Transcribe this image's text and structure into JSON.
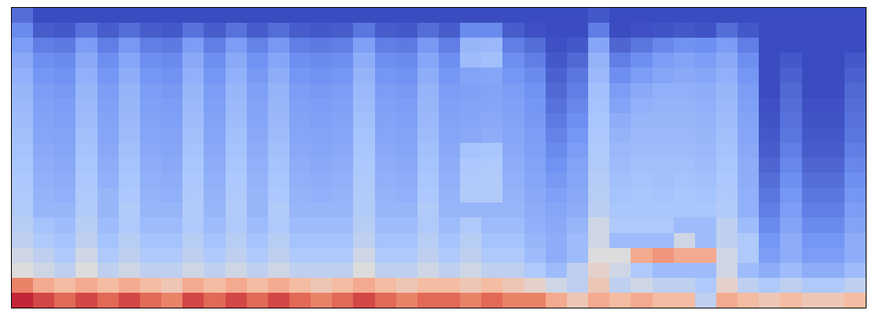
{
  "chart_data": {
    "type": "heatmap",
    "tick_labels": false,
    "grid": false,
    "xlim": [
      -0.5,
      39.5
    ],
    "ylim": [
      -0.5,
      19.5
    ],
    "color_range": [
      0,
      10
    ],
    "colors": [
      "#3b4cc0",
      "#6f92f3",
      "#aac7fd",
      "#dddcdc",
      "#f7b89c",
      "#e7745b",
      "#b40426"
    ],
    "cells": [
      [
        9.5,
        9,
        8.5,
        9,
        8.5,
        9,
        8.5,
        8,
        9,
        8.5,
        9,
        8.5,
        9,
        8.5,
        8,
        8.5,
        9,
        8.5,
        8,
        8.5,
        8.5,
        8,
        8.5,
        8,
        8,
        7,
        6,
        7,
        6.5,
        7,
        6.5,
        6.5,
        4,
        7,
        6.5,
        6,
        6.5,
        6,
        6,
        6.5
      ],
      [
        8,
        7,
        6.5,
        7,
        6.5,
        7,
        6.5,
        6,
        7,
        6.5,
        7,
        6.5,
        7,
        6.5,
        6,
        6.5,
        7,
        6.5,
        6,
        6.5,
        6.5,
        6,
        6.5,
        6,
        5.5,
        4.5,
        4,
        6,
        4,
        4.5,
        4,
        4,
        3.5,
        5.5,
        4,
        3.5,
        4,
        3.5,
        3.5,
        4
      ],
      [
        5,
        4.5,
        4,
        5,
        4,
        4.5,
        4,
        4,
        4.5,
        4,
        4.5,
        4,
        4.5,
        4,
        4,
        4,
        5,
        4,
        4,
        4.5,
        4,
        4.5,
        4,
        4,
        3.5,
        3,
        4,
        5.5,
        4.5,
        3.5,
        3,
        3,
        3,
        4.5,
        3,
        2.5,
        3,
        2.5,
        2.5,
        3
      ],
      [
        4.5,
        4,
        3.5,
        4.5,
        3.5,
        4,
        3.5,
        3.5,
        4,
        3.5,
        4,
        3.5,
        4,
        3.5,
        3.5,
        3.5,
        4.5,
        3.5,
        3.5,
        4,
        3.5,
        4,
        3.5,
        3.5,
        3,
        2.5,
        3,
        5,
        5,
        7,
        7.5,
        7,
        7,
        4.5,
        3.5,
        2,
        2.5,
        2,
        2,
        2.5
      ],
      [
        4,
        3.5,
        3.2,
        4,
        3.2,
        3.8,
        3.2,
        3.2,
        3.8,
        3.2,
        3.8,
        3.2,
        3.8,
        3.2,
        3.2,
        3.2,
        4,
        3.2,
        3.2,
        3.8,
        3.2,
        3.8,
        3.2,
        3.2,
        2.8,
        2.5,
        3,
        4.5,
        3,
        3,
        3,
        4.5,
        3,
        4,
        3.5,
        1.8,
        2.5,
        1.8,
        1.8,
        2.5
      ],
      [
        3.8,
        3.2,
        3,
        3.8,
        3,
        3.5,
        3,
        3,
        3.5,
        3,
        3.5,
        3,
        3.5,
        3,
        3,
        3,
        3.8,
        3,
        3,
        3.5,
        3,
        3.5,
        3,
        3,
        2.6,
        2.4,
        2.8,
        4.5,
        3.5,
        3.5,
        3.5,
        3,
        3,
        4,
        3,
        1.5,
        2.2,
        1.5,
        1.5,
        2.2
      ],
      [
        3.6,
        2.8,
        2.8,
        3.6,
        2.8,
        3.6,
        2.8,
        2.8,
        3.6,
        2.8,
        3.6,
        2.8,
        3.6,
        2.8,
        2.8,
        2.8,
        3.6,
        2.8,
        2.8,
        3.6,
        2.8,
        2.8,
        2.8,
        2.8,
        2.5,
        2.3,
        2.5,
        3.9,
        3.3,
        3.3,
        3.3,
        3.3,
        3.3,
        3.6,
        2.6,
        1.2,
        2,
        1.2,
        1.2,
        2
      ],
      [
        3.5,
        2.7,
        2.6,
        3.5,
        2.8,
        3.4,
        2.7,
        2.6,
        3.5,
        2.7,
        3.5,
        2.8,
        3.4,
        2.7,
        2.6,
        2.7,
        3.6,
        2.7,
        2.6,
        3.4,
        2.7,
        3.6,
        3.6,
        2.7,
        2.4,
        2.1,
        2.4,
        3.8,
        3.2,
        3.3,
        3.2,
        3.3,
        3.2,
        3.5,
        2.6,
        1,
        1.8,
        1,
        1,
        1.8
      ],
      [
        3.4,
        2.6,
        2.5,
        3.4,
        2.6,
        3.3,
        2.6,
        2.5,
        3.4,
        2.6,
        3.4,
        2.7,
        3.3,
        2.6,
        2.5,
        2.6,
        3.5,
        2.6,
        2.5,
        3.3,
        2.6,
        3.5,
        3.6,
        2.6,
        2.3,
        1.9,
        2.3,
        3.7,
        3.1,
        3.2,
        3.1,
        3.2,
        3.1,
        3.4,
        2.5,
        0.8,
        1.6,
        0.8,
        0.8,
        1.6
      ],
      [
        3.3,
        2.5,
        2.4,
        3.3,
        2.5,
        3.2,
        2.5,
        2.4,
        3.3,
        2.5,
        3.3,
        2.6,
        3.2,
        2.5,
        2.4,
        2.5,
        3.4,
        2.5,
        2.4,
        3.2,
        2.5,
        3.4,
        3.5,
        2.5,
        2.2,
        1.7,
        2.2,
        3.6,
        3,
        3.1,
        3.1,
        3.1,
        3,
        3.3,
        2.5,
        0.6,
        1.4,
        0.6,
        0.6,
        1.4
      ],
      [
        3.2,
        2.4,
        2.3,
        3.2,
        2.4,
        3.1,
        2.4,
        2.3,
        3.2,
        2.4,
        3.2,
        2.5,
        3.1,
        2.4,
        2.3,
        2.4,
        3.3,
        2.4,
        2.3,
        3.1,
        2.4,
        3.2,
        3.3,
        2.4,
        2.1,
        1.5,
        2,
        3.5,
        2.9,
        3,
        3,
        3,
        2.9,
        3.2,
        2.4,
        0.4,
        1.2,
        0.4,
        0.4,
        1.2
      ],
      [
        3.1,
        2.3,
        2.2,
        3.1,
        2.3,
        3,
        2.3,
        2.2,
        3.1,
        2.3,
        3.1,
        2.4,
        3,
        2.3,
        2.2,
        2.3,
        3.2,
        2.3,
        2.2,
        3,
        2.3,
        2.4,
        2.5,
        2.3,
        2,
        1.3,
        1.8,
        3.4,
        2.7,
        2.9,
        2.9,
        2.9,
        2.8,
        3.1,
        2.3,
        0.3,
        1,
        0.3,
        0.3,
        1
      ],
      [
        3,
        2.2,
        2.1,
        3,
        2.2,
        2.9,
        2.2,
        2.1,
        3,
        2.2,
        3,
        2.3,
        2.9,
        2.2,
        2.1,
        2.2,
        3.1,
        2.2,
        2.1,
        2.9,
        2.2,
        2.3,
        2.4,
        2.2,
        1.9,
        1.1,
        1.6,
        3.3,
        2.5,
        2.8,
        2.8,
        2.8,
        2.7,
        3,
        2.2,
        0.2,
        0.9,
        0.2,
        0.2,
        0.9
      ],
      [
        2.9,
        2.1,
        2,
        2.9,
        2.1,
        2.8,
        2.1,
        2,
        2.9,
        2.1,
        2.9,
        2.2,
        2.8,
        2.1,
        2,
        2.1,
        3,
        2.1,
        2,
        2.8,
        2.1,
        2.2,
        2.3,
        2.1,
        1.8,
        0.9,
        1.4,
        3.2,
        2.2,
        2.6,
        2.7,
        2.7,
        2.6,
        2.9,
        2.1,
        0.1,
        0.8,
        0.1,
        0.1,
        0.8
      ],
      [
        2.8,
        2,
        1.9,
        2.8,
        2,
        2.7,
        2,
        1.9,
        2.8,
        2,
        2.8,
        2.1,
        2.7,
        2,
        1.9,
        2,
        2.9,
        2,
        1.9,
        2.7,
        2,
        2.1,
        2.2,
        2,
        1.7,
        0.7,
        1.2,
        3.1,
        2,
        2.4,
        2.6,
        2.6,
        2.5,
        2.8,
        2,
        0,
        0.7,
        0,
        0,
        0.7
      ],
      [
        2.6,
        1.8,
        1.7,
        2.6,
        1.8,
        2.5,
        1.8,
        1.7,
        2.6,
        1.8,
        2.6,
        1.9,
        2.5,
        1.8,
        1.7,
        1.8,
        2.7,
        1.8,
        1.7,
        2.5,
        1.8,
        2.2,
        2.3,
        1.8,
        1.5,
        0.5,
        1,
        2.9,
        1.6,
        2,
        2.3,
        2.4,
        2.3,
        2.6,
        1.8,
        0,
        0.5,
        0,
        0,
        0.5
      ],
      [
        2.4,
        1.6,
        1.5,
        2.4,
        1.6,
        2.3,
        1.6,
        1.5,
        2.4,
        1.6,
        2.4,
        1.7,
        2.3,
        1.6,
        1.5,
        1.6,
        2.5,
        1.6,
        1.5,
        2.3,
        1.6,
        3,
        3.1,
        1.6,
        1.2,
        0.3,
        0.7,
        2.7,
        1.2,
        1.6,
        2,
        2.2,
        2,
        2.4,
        1.6,
        0,
        0.3,
        0,
        0,
        0.3
      ],
      [
        2,
        1.2,
        1.1,
        2,
        1.2,
        1.9,
        1.2,
        1.1,
        2,
        1.2,
        2,
        1.3,
        1.9,
        1.2,
        1.1,
        1.2,
        2.1,
        1.2,
        1.1,
        1.9,
        1.2,
        2.8,
        2.9,
        1.2,
        0.8,
        0.1,
        0.3,
        2.3,
        0.6,
        1,
        1.4,
        1.7,
        1.6,
        2,
        1.2,
        0,
        0,
        0,
        0,
        0
      ],
      [
        1.5,
        0.4,
        0.3,
        0.9,
        0.4,
        0.8,
        0.4,
        0.3,
        0.9,
        0.4,
        0.9,
        0.4,
        0.8,
        0.4,
        0.3,
        0.4,
        1,
        0.4,
        0.3,
        0.8,
        0.4,
        1.5,
        1.5,
        0.4,
        0.1,
        0,
        0,
        1.2,
        0,
        0.1,
        0.2,
        0.3,
        0.2,
        0.8,
        0.3,
        0,
        0,
        0,
        0,
        0
      ],
      [
        0.8,
        0,
        0,
        0,
        0,
        0,
        0,
        0,
        0,
        0,
        0,
        0,
        0,
        0,
        0,
        0,
        0,
        0,
        0,
        0,
        0,
        0,
        0,
        0,
        0,
        0,
        0,
        0.3,
        0,
        0,
        0,
        0,
        0,
        0,
        0,
        0,
        0,
        0,
        0,
        0
      ]
    ]
  }
}
